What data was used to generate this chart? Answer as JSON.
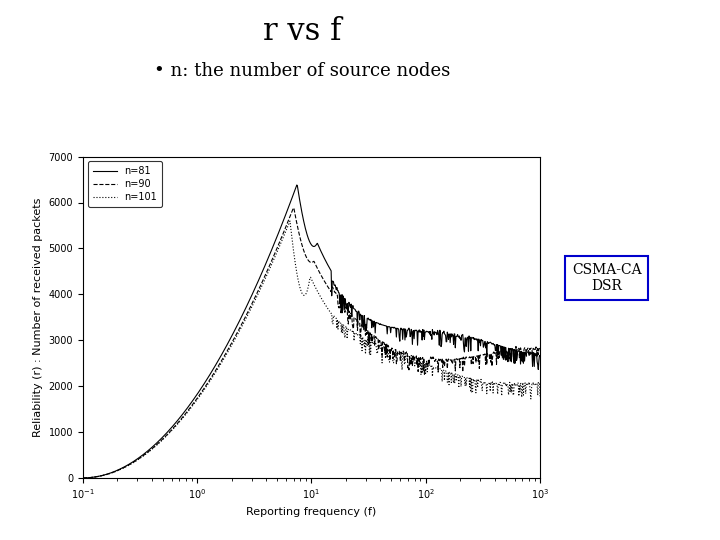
{
  "title": "r vs f",
  "subtitle": "n: the number of source nodes",
  "xlabel": "Reporting frequency (f)",
  "ylabel": "Reliability (r) : Number of received packets",
  "ylim": [
    0,
    7000
  ],
  "yticks": [
    0,
    1000,
    2000,
    3000,
    4000,
    5000,
    6000,
    7000
  ],
  "legend_labels": [
    "n=81",
    "n=90",
    "n=101"
  ],
  "box_label": "CSMA-CA\nDSR",
  "box_border": "#0000cc",
  "line_color": "#000000",
  "title_fontsize": 22,
  "subtitle_fontsize": 13,
  "axis_fontsize": 8,
  "legend_fontsize": 7
}
